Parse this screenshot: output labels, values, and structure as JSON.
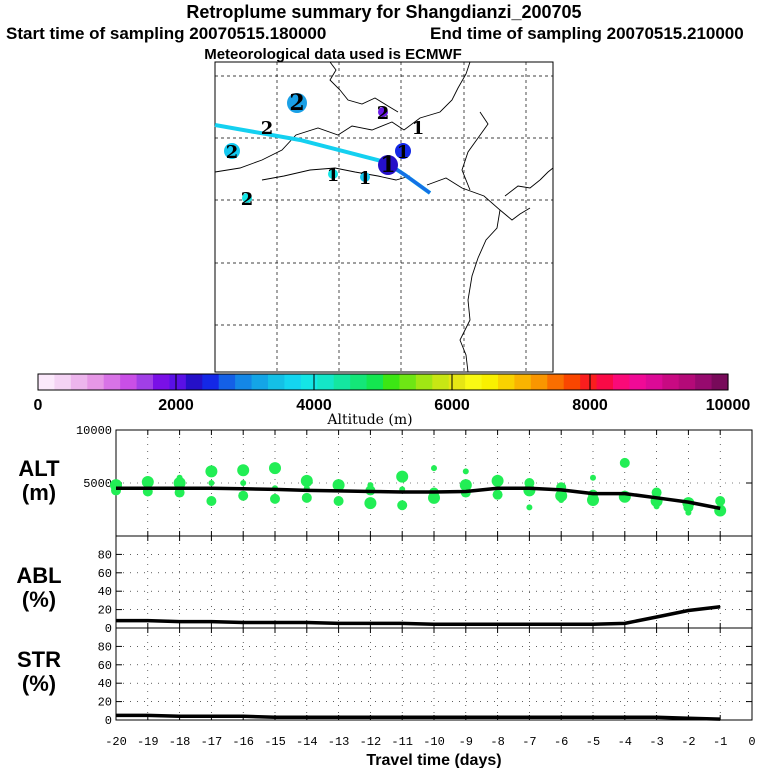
{
  "header": {
    "title": "Retroplume summary for Shangdianzi_200705",
    "start_time": "Start time of sampling 20070515.180000",
    "end_time": "End time of sampling 20070515.210000",
    "met_data": "Meteorological data used is ECMWF"
  },
  "colorbar": {
    "title": "Altitude (m)",
    "ticks": [
      "0",
      "2000",
      "4000",
      "6000",
      "8000",
      "10000"
    ],
    "colors": [
      "#fbe9fb",
      "#f4d3f4",
      "#edb5ed",
      "#e697e6",
      "#d873e6",
      "#c94fe6",
      "#a13fe6",
      "#7a10e6",
      "#5a10e6",
      "#2510c8",
      "#1428e6",
      "#1460e6",
      "#1487e6",
      "#14a5e6",
      "#14c0e6",
      "#14d5f0",
      "#14e6e6",
      "#14e6c8",
      "#14e6a0",
      "#14e678",
      "#14e650",
      "#3ce614",
      "#6ee614",
      "#a0e614",
      "#c8e614",
      "#e6e614",
      "#fafa14",
      "#faf000",
      "#fad200",
      "#fab400",
      "#fa9600",
      "#fa6e00",
      "#fa4600",
      "#fa1e1e",
      "#fa0a46",
      "#fa0a78",
      "#f00a96",
      "#dc0a96",
      "#c80a82",
      "#b40a78",
      "#960a6e",
      "#780a5a"
    ]
  },
  "map": {
    "cluster_labels": [
      {
        "label": "2",
        "color": "#1aa0e6",
        "size": "large"
      },
      {
        "label": "2",
        "color": "#6a1ae6",
        "size": "small"
      },
      {
        "label": "1",
        "color": "none",
        "size": "none"
      },
      {
        "label": "2",
        "color": "none",
        "size": "none"
      },
      {
        "label": "2",
        "color": "#14c8f0",
        "size": "medium"
      },
      {
        "label": "1",
        "color": "#1428e6",
        "size": "medium"
      },
      {
        "label": "1",
        "color": "#2510c8",
        "size": "large"
      },
      {
        "label": "1",
        "color": "#14e6e6",
        "size": "small"
      },
      {
        "label": "1",
        "color": "#14c8f0",
        "size": "small"
      },
      {
        "label": "2",
        "color": "#14e6e6",
        "size": "small"
      }
    ]
  },
  "panels": {
    "alt": {
      "label_line1": "ALT",
      "label_line2": "(m)",
      "ticks": [
        "10000",
        "5000"
      ]
    },
    "abl": {
      "label_line1": "ABL",
      "label_line2": "(%)",
      "ticks": [
        "80",
        "60",
        "40",
        "20",
        "0"
      ]
    },
    "str": {
      "label_line1": "STR",
      "label_line2": "(%)",
      "ticks": [
        "80",
        "60",
        "40",
        "20",
        "0"
      ]
    }
  },
  "xaxis": {
    "label": "Travel time (days)",
    "ticks": [
      "-20",
      "-19",
      "-18",
      "-17",
      "-16",
      "-15",
      "-14",
      "-13",
      "-12",
      "-11",
      "-10",
      "-9",
      "-8",
      "-7",
      "-6",
      "-5",
      "-4",
      "-3",
      "-2",
      "-1",
      "0"
    ]
  },
  "chart_data": {
    "type": "line",
    "title": "Retroplume summary for Shangdianzi_200705",
    "xlabel": "Travel time (days)",
    "x": [
      -20,
      -19,
      -18,
      -17,
      -16,
      -15,
      -14,
      -13,
      -12,
      -11,
      -10,
      -9,
      -8,
      -7,
      -6,
      -5,
      -4,
      -3,
      -2,
      -1
    ],
    "series": [
      {
        "name": "ALT (m)",
        "ylim": [
          0,
          10000
        ],
        "values": [
          4500,
          4500,
          4500,
          4500,
          4450,
          4400,
          4300,
          4250,
          4200,
          4150,
          4150,
          4200,
          4500,
          4500,
          4350,
          4000,
          4000,
          3600,
          3200,
          2600
        ]
      },
      {
        "name": "ABL (%)",
        "ylim": [
          0,
          100
        ],
        "values": [
          8,
          8,
          7,
          7,
          6,
          6,
          6,
          5,
          5,
          5,
          4,
          4,
          4,
          4,
          4,
          4,
          5,
          12,
          19,
          23
        ]
      },
      {
        "name": "STR (%)",
        "ylim": [
          0,
          100
        ],
        "values": [
          5,
          5,
          4,
          4,
          4,
          3,
          3,
          3,
          3,
          3,
          3,
          3,
          3,
          3,
          3,
          3,
          3,
          3,
          2,
          1
        ]
      }
    ],
    "cluster_altitudes": [
      {
        "x": -20,
        "values": [
          4800,
          4300,
          4600
        ]
      },
      {
        "x": -19,
        "values": [
          5100,
          4200,
          4700
        ]
      },
      {
        "x": -18,
        "values": [
          5000,
          4100,
          5500
        ]
      },
      {
        "x": -17,
        "values": [
          6100,
          3300,
          5000
        ]
      },
      {
        "x": -16,
        "values": [
          6200,
          3800,
          5000
        ]
      },
      {
        "x": -15,
        "values": [
          6400,
          3500,
          4500
        ]
      },
      {
        "x": -14,
        "values": [
          5200,
          3600,
          4500
        ]
      },
      {
        "x": -13,
        "values": [
          4800,
          3300,
          4900
        ]
      },
      {
        "x": -12,
        "values": [
          3100,
          4300,
          4800
        ]
      },
      {
        "x": -11,
        "values": [
          5600,
          2900,
          4400
        ]
      },
      {
        "x": -10,
        "values": [
          3600,
          4100,
          6400
        ]
      },
      {
        "x": -9,
        "values": [
          4800,
          4100,
          6100
        ]
      },
      {
        "x": -8,
        "values": [
          5200,
          3900,
          5500
        ]
      },
      {
        "x": -7,
        "values": [
          4300,
          5000,
          2700
        ]
      },
      {
        "x": -6,
        "values": [
          3800,
          4600,
          3400
        ]
      },
      {
        "x": -5,
        "values": [
          3400,
          3900,
          5500
        ]
      },
      {
        "x": -4,
        "values": [
          3700,
          6900,
          4000
        ]
      },
      {
        "x": -3,
        "values": [
          3300,
          4100,
          2800
        ]
      },
      {
        "x": -2,
        "values": [
          3100,
          2700,
          2200
        ]
      },
      {
        "x": -1,
        "values": [
          2400,
          3300,
          2800
        ]
      }
    ]
  }
}
